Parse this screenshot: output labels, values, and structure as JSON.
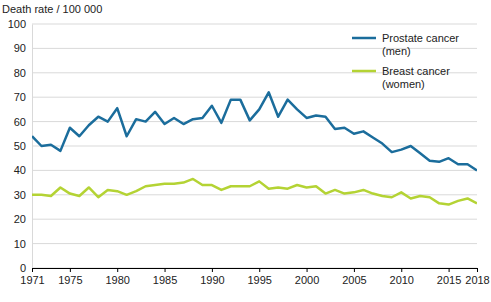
{
  "chart_data": {
    "type": "line",
    "y_label": "Death rate / 100 000",
    "x": [
      1971,
      1972,
      1973,
      1974,
      1975,
      1976,
      1977,
      1978,
      1979,
      1980,
      1981,
      1982,
      1983,
      1984,
      1985,
      1986,
      1987,
      1988,
      1989,
      1990,
      1991,
      1992,
      1993,
      1994,
      1995,
      1996,
      1997,
      1998,
      1999,
      2000,
      2001,
      2002,
      2003,
      2004,
      2005,
      2006,
      2007,
      2008,
      2009,
      2010,
      2011,
      2012,
      2013,
      2014,
      2015,
      2016,
      2017,
      2018
    ],
    "series": [
      {
        "name": "Prostate cancer (men)",
        "color": "#1b6d9c",
        "values": [
          54,
          50,
          50.5,
          48,
          57.5,
          54,
          58.5,
          62,
          60,
          65.5,
          54,
          61,
          60,
          64,
          59,
          61.5,
          59,
          61,
          61.5,
          66.5,
          59.5,
          69,
          69,
          60.5,
          65,
          72,
          62,
          69,
          65,
          61.5,
          62.5,
          62,
          57,
          57.5,
          55,
          56,
          53.5,
          51,
          47.5,
          48.5,
          50,
          47,
          44,
          43.5,
          45,
          42.5,
          42.5,
          40
        ]
      },
      {
        "name": "Breast cancer (women)",
        "color": "#b4d334",
        "values": [
          30,
          30,
          29.5,
          33,
          30.5,
          29.5,
          33,
          29,
          32,
          31.5,
          30,
          31.5,
          33.5,
          34,
          34.5,
          34.5,
          35,
          36.5,
          34,
          34,
          32,
          33.5,
          33.5,
          33.5,
          35.5,
          32.5,
          33,
          32.5,
          34,
          33,
          33.5,
          30.5,
          32,
          30.5,
          31,
          32,
          30.5,
          29.5,
          29,
          31,
          28.5,
          29.5,
          29,
          26.5,
          26,
          27.5,
          28.5,
          26.5
        ]
      }
    ],
    "xlim": [
      1971,
      2018
    ],
    "xticks": [
      1971,
      1975,
      1980,
      1985,
      1990,
      1995,
      2000,
      2005,
      2010,
      2015,
      2018
    ],
    "ylim": [
      0,
      100
    ],
    "yticks": [
      0,
      10,
      20,
      30,
      40,
      50,
      60,
      70,
      80,
      90,
      100
    ],
    "grid": true,
    "legend": "upper right"
  }
}
